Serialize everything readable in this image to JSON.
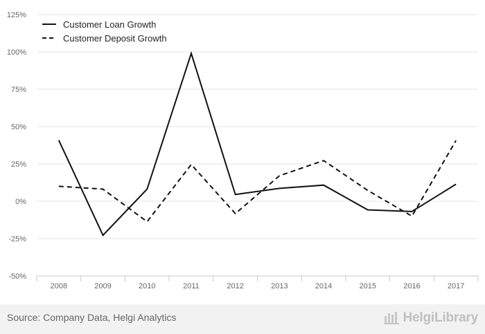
{
  "chart_data": {
    "type": "line",
    "title": "",
    "xlabel": "",
    "ylabel": "",
    "categories": [
      "2008",
      "2009",
      "2010",
      "2011",
      "2012",
      "2013",
      "2014",
      "2015",
      "2016",
      "2017"
    ],
    "ylim": [
      -50,
      125
    ],
    "yticks": [
      -50,
      -25,
      0,
      25,
      50,
      75,
      100,
      125
    ],
    "ytick_labels": [
      "-50%",
      "-25%",
      "0%",
      "25%",
      "50%",
      "75%",
      "100%",
      "125%"
    ],
    "grid": "horizontal",
    "legend_position": "top-left",
    "series": [
      {
        "name": "Customer Loan Growth",
        "style": "solid",
        "color": "#111111",
        "values": [
          40.9,
          -22.8,
          8.1,
          99.0,
          4.5,
          8.6,
          10.8,
          -5.8,
          -6.9,
          11.4
        ]
      },
      {
        "name": "Customer Deposit Growth",
        "style": "dashed",
        "color": "#111111",
        "values": [
          10.0,
          8.1,
          -13.7,
          24.6,
          -8.3,
          17.1,
          27.2,
          7.2,
          -10.0,
          40.6
        ]
      }
    ]
  },
  "footer": {
    "source": "Source: Company Data, Helgi Analytics",
    "logo_text": "HelgiLibrary"
  },
  "colors": {
    "grid": "#e6e6e6",
    "axis": "#c8c8c8",
    "tick_label": "#666666",
    "footer_bg": "#f2f2f2",
    "logo": "#c0c0c0"
  }
}
